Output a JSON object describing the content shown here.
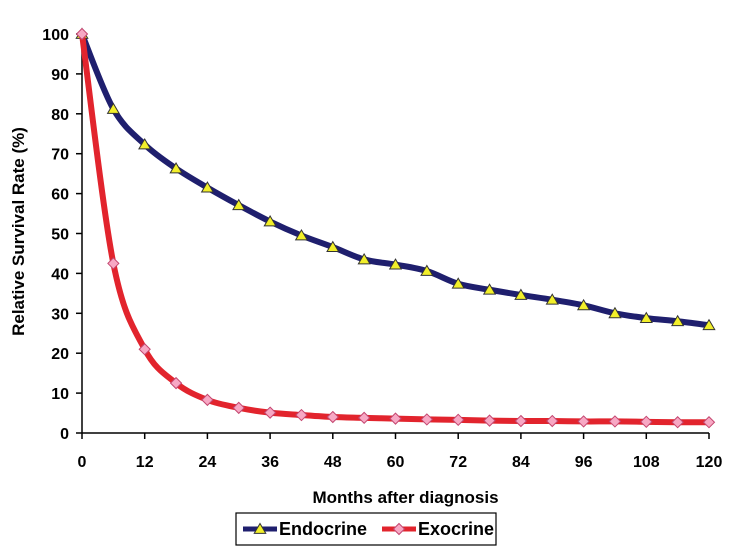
{
  "chart_data": {
    "type": "line",
    "title": "",
    "xlabel": "Months after diagnosis",
    "ylabel": "Relative Survival Rate (%)",
    "xlim": [
      0,
      120
    ],
    "ylim": [
      0,
      100
    ],
    "xticks": [
      0,
      12,
      24,
      36,
      48,
      60,
      72,
      84,
      96,
      108,
      120
    ],
    "yticks": [
      0,
      10,
      20,
      30,
      40,
      50,
      60,
      70,
      80,
      90,
      100
    ],
    "grid": false,
    "legend_position": "bottom",
    "x": [
      0,
      6,
      12,
      18,
      24,
      30,
      36,
      42,
      48,
      54,
      60,
      66,
      72,
      78,
      84,
      90,
      96,
      102,
      108,
      114,
      120
    ],
    "series": [
      {
        "name": "Endocrine",
        "color": "#1f1f6e",
        "marker": "triangle",
        "marker_color": "#f2ef2a",
        "values": [
          100,
          81.2,
          72.3,
          66.3,
          61.5,
          57.1,
          53.0,
          49.5,
          46.6,
          43.5,
          42.2,
          40.6,
          37.4,
          35.9,
          34.6,
          33.4,
          32.0,
          30.0,
          28.8,
          28.0,
          27.0
        ]
      },
      {
        "name": "Exocrine",
        "color": "#e2242d",
        "marker": "diamond",
        "marker_color": "#f7a8c4",
        "values": [
          100,
          42.5,
          21.0,
          12.5,
          8.3,
          6.3,
          5.1,
          4.5,
          4.0,
          3.8,
          3.6,
          3.4,
          3.3,
          3.1,
          3.0,
          3.0,
          2.9,
          2.9,
          2.8,
          2.7,
          2.7
        ]
      }
    ]
  }
}
